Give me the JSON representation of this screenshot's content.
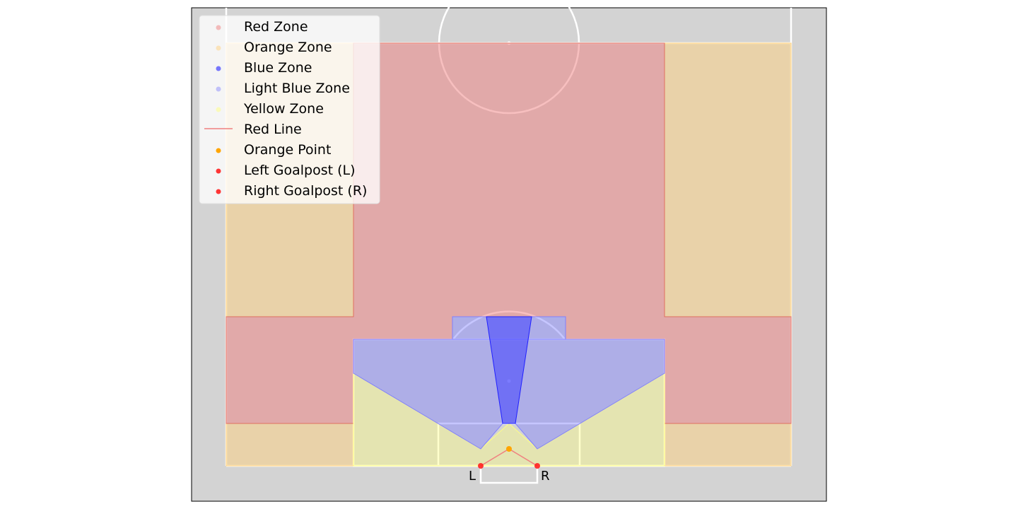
{
  "legend": {
    "items": [
      {
        "label": "Red Zone",
        "marker": "dot",
        "color": "#f08080",
        "alpha": 0.5
      },
      {
        "label": "Orange Zone",
        "marker": "dot",
        "color": "#ffd27f",
        "alpha": 0.5
      },
      {
        "label": "Blue Zone",
        "marker": "dot",
        "color": "#4040ff",
        "alpha": 0.7
      },
      {
        "label": "Light Blue Zone",
        "marker": "dot",
        "color": "#8080ff",
        "alpha": 0.45
      },
      {
        "label": "Yellow Zone",
        "marker": "dot",
        "color": "#ffff80",
        "alpha": 0.5
      },
      {
        "label": "Red Line",
        "marker": "line",
        "color": "#f08080",
        "alpha": 1
      },
      {
        "label": "Orange Point",
        "marker": "dot",
        "color": "#ffa500",
        "alpha": 1
      },
      {
        "label": "Left Goalpost (L)",
        "marker": "dot",
        "color": "#ff2020",
        "alpha": 0.9
      },
      {
        "label": "Right Goalpost (R)",
        "marker": "dot",
        "color": "#ff2020",
        "alpha": 0.9
      }
    ]
  },
  "goalposts": {
    "left_label": "L",
    "right_label": "R"
  },
  "colors": {
    "pitch": "#d3d3d3",
    "lines": "#ffffff",
    "red_zone": "#f08080",
    "orange_zone": "#ffd27f",
    "blue_zone": "#4040ff",
    "light_blue_zone": "#8080ff",
    "yellow_zone": "#ffff80",
    "red_line": "#f08080",
    "orange_point": "#ffa500",
    "goalpost": "#ff2020"
  }
}
